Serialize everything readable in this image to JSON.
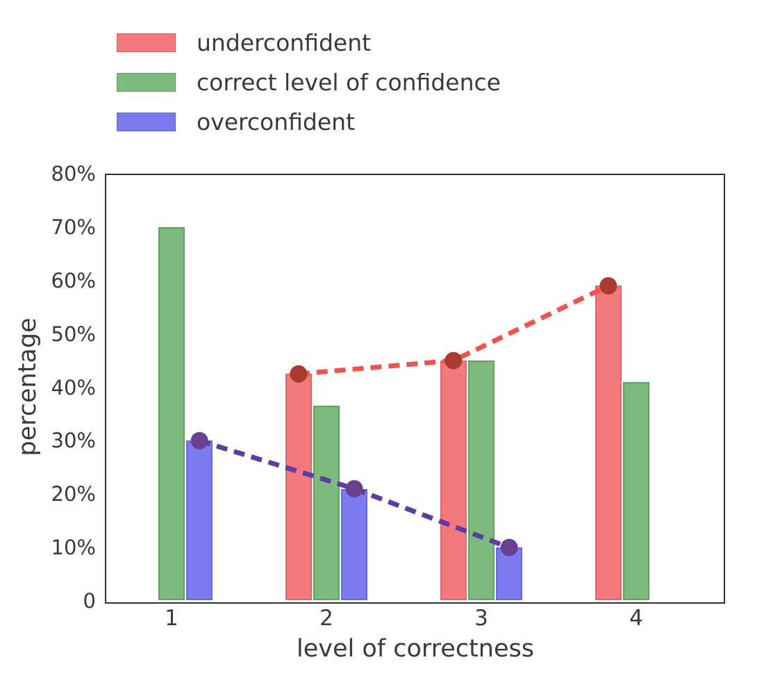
{
  "chart_data": {
    "type": "bar",
    "title": "",
    "xlabel": "level of correctness",
    "ylabel": "percentage",
    "categories": [
      "1",
      "2",
      "3",
      "4"
    ],
    "series": [
      {
        "name": "underconfident",
        "color": "#f4797d",
        "edge": "rgba(176,58,62,0.30)",
        "values": [
          0,
          42.5,
          45,
          59
        ]
      },
      {
        "name": "correct level of confidence",
        "color": "#7dba7e",
        "edge": "rgba(58,122,58,0.40)",
        "values": [
          70,
          36.5,
          45,
          41
        ]
      },
      {
        "name": "overconfident",
        "color": "#7b7bee",
        "edge": "rgba(62,62,176,0.30)",
        "values": [
          30,
          21,
          10,
          0
        ]
      }
    ],
    "lines": [
      {
        "name": "underconfident-trend",
        "color": "#f0544f",
        "marker_color": "#a93b31",
        "x_offset": -0.18,
        "points": [
          {
            "x": 2,
            "y": 42.5
          },
          {
            "x": 3,
            "y": 45
          },
          {
            "x": 4,
            "y": 59
          }
        ]
      },
      {
        "name": "overconfident-trend",
        "color": "#5f3da0",
        "marker_color": "#6a3f90",
        "x_offset": 0.18,
        "points": [
          {
            "x": 1,
            "y": 30
          },
          {
            "x": 2,
            "y": 21
          },
          {
            "x": 3,
            "y": 10
          }
        ]
      }
    ],
    "y_ticks": [
      "80%",
      "70%",
      "60%",
      "50%",
      "40%",
      "30%",
      "20%",
      "10%",
      "0"
    ],
    "y_tick_values": [
      80,
      70,
      60,
      50,
      40,
      30,
      20,
      10,
      0
    ],
    "x_ticks": [
      "1",
      "2",
      "3",
      "4"
    ],
    "ylim": [
      0,
      80
    ],
    "grid": false,
    "legend_position": "upper-left-outside",
    "axis_color": "#303030"
  }
}
